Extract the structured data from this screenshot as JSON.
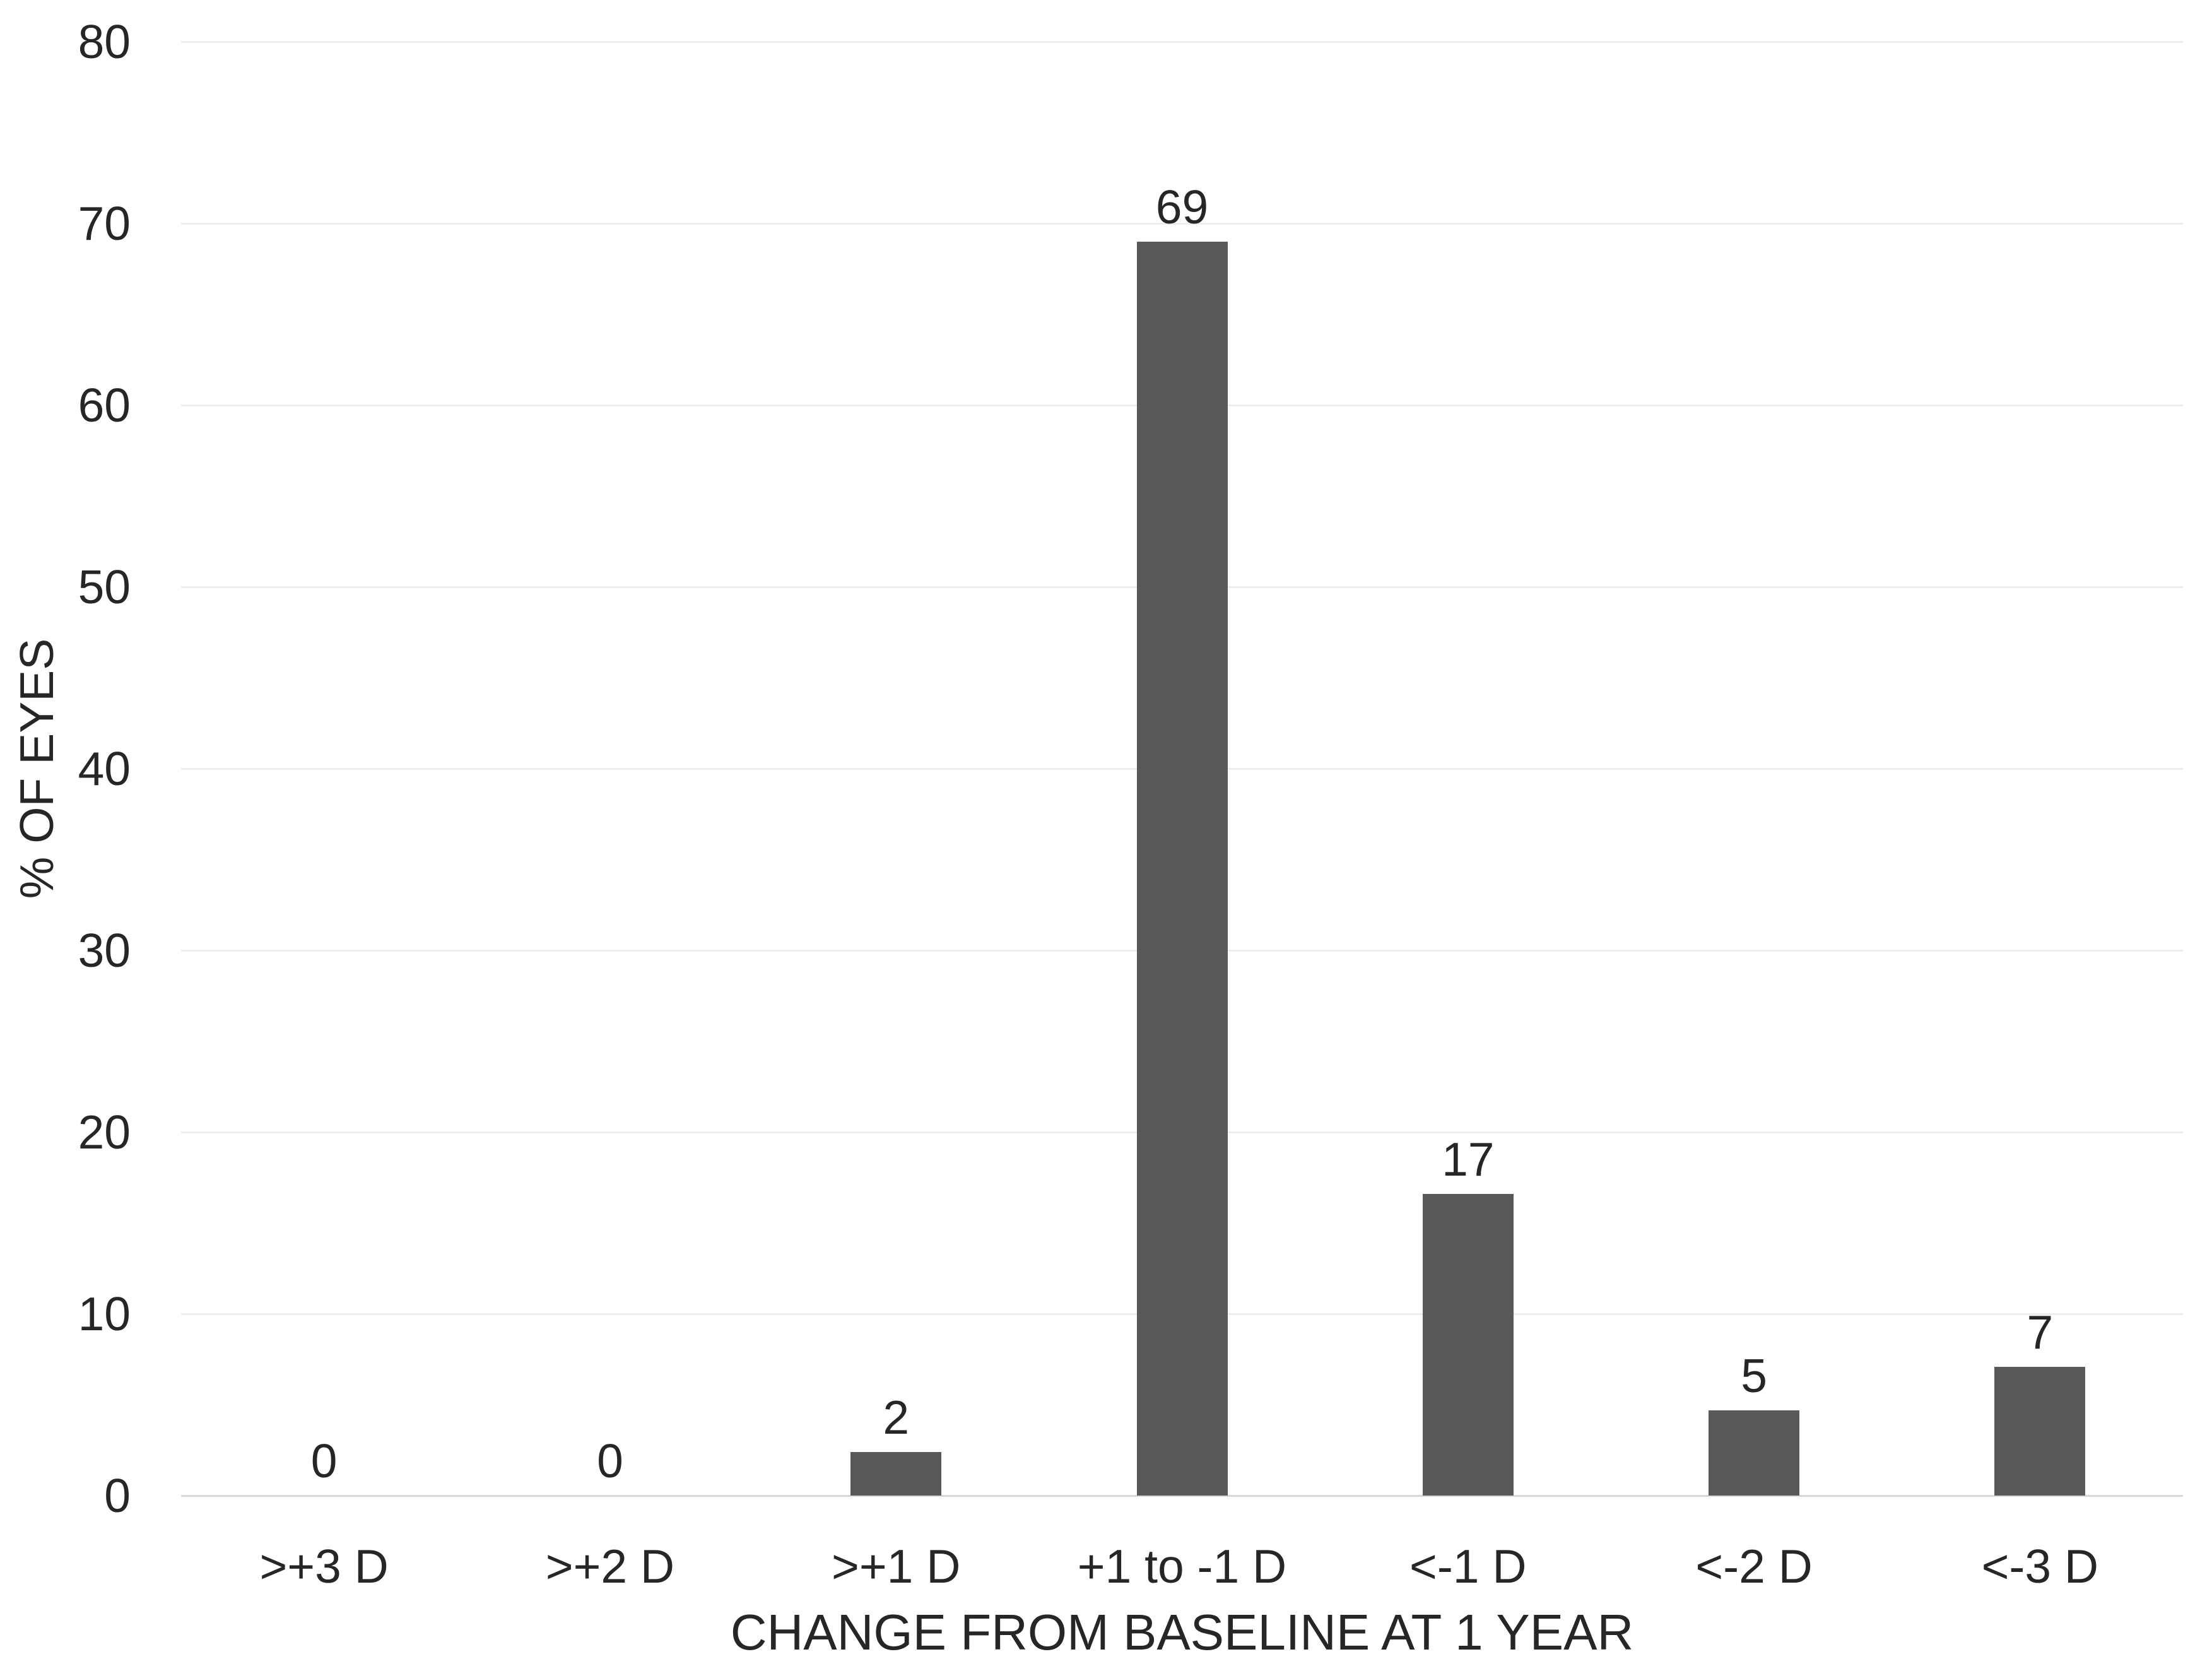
{
  "chart_data": {
    "type": "bar",
    "title": "",
    "categories": [
      ">+3 D",
      ">+2 D",
      ">+1 D",
      "+1 to -1 D",
      "<-1 D",
      "<-2 D",
      "<-3 D"
    ],
    "values": [
      0,
      0,
      2,
      69,
      17,
      5,
      7
    ],
    "bar_heights_est": [
      0,
      0,
      2.4,
      69,
      16.6,
      4.7,
      7.1
    ],
    "xlabel": "CHANGE FROM BASELINE AT 1 YEAR",
    "ylabel": "% OF EYES",
    "ylim": [
      0,
      80
    ],
    "yticks": [
      0,
      10,
      20,
      30,
      40,
      50,
      60,
      70,
      80
    ],
    "grid": "horizontal",
    "legend": "none",
    "bar_color": "#595959",
    "gridline_color": "#ededed",
    "axis_line_color": "#d9d9d9",
    "text_color": "#262626",
    "background_color": "#ffffff"
  }
}
